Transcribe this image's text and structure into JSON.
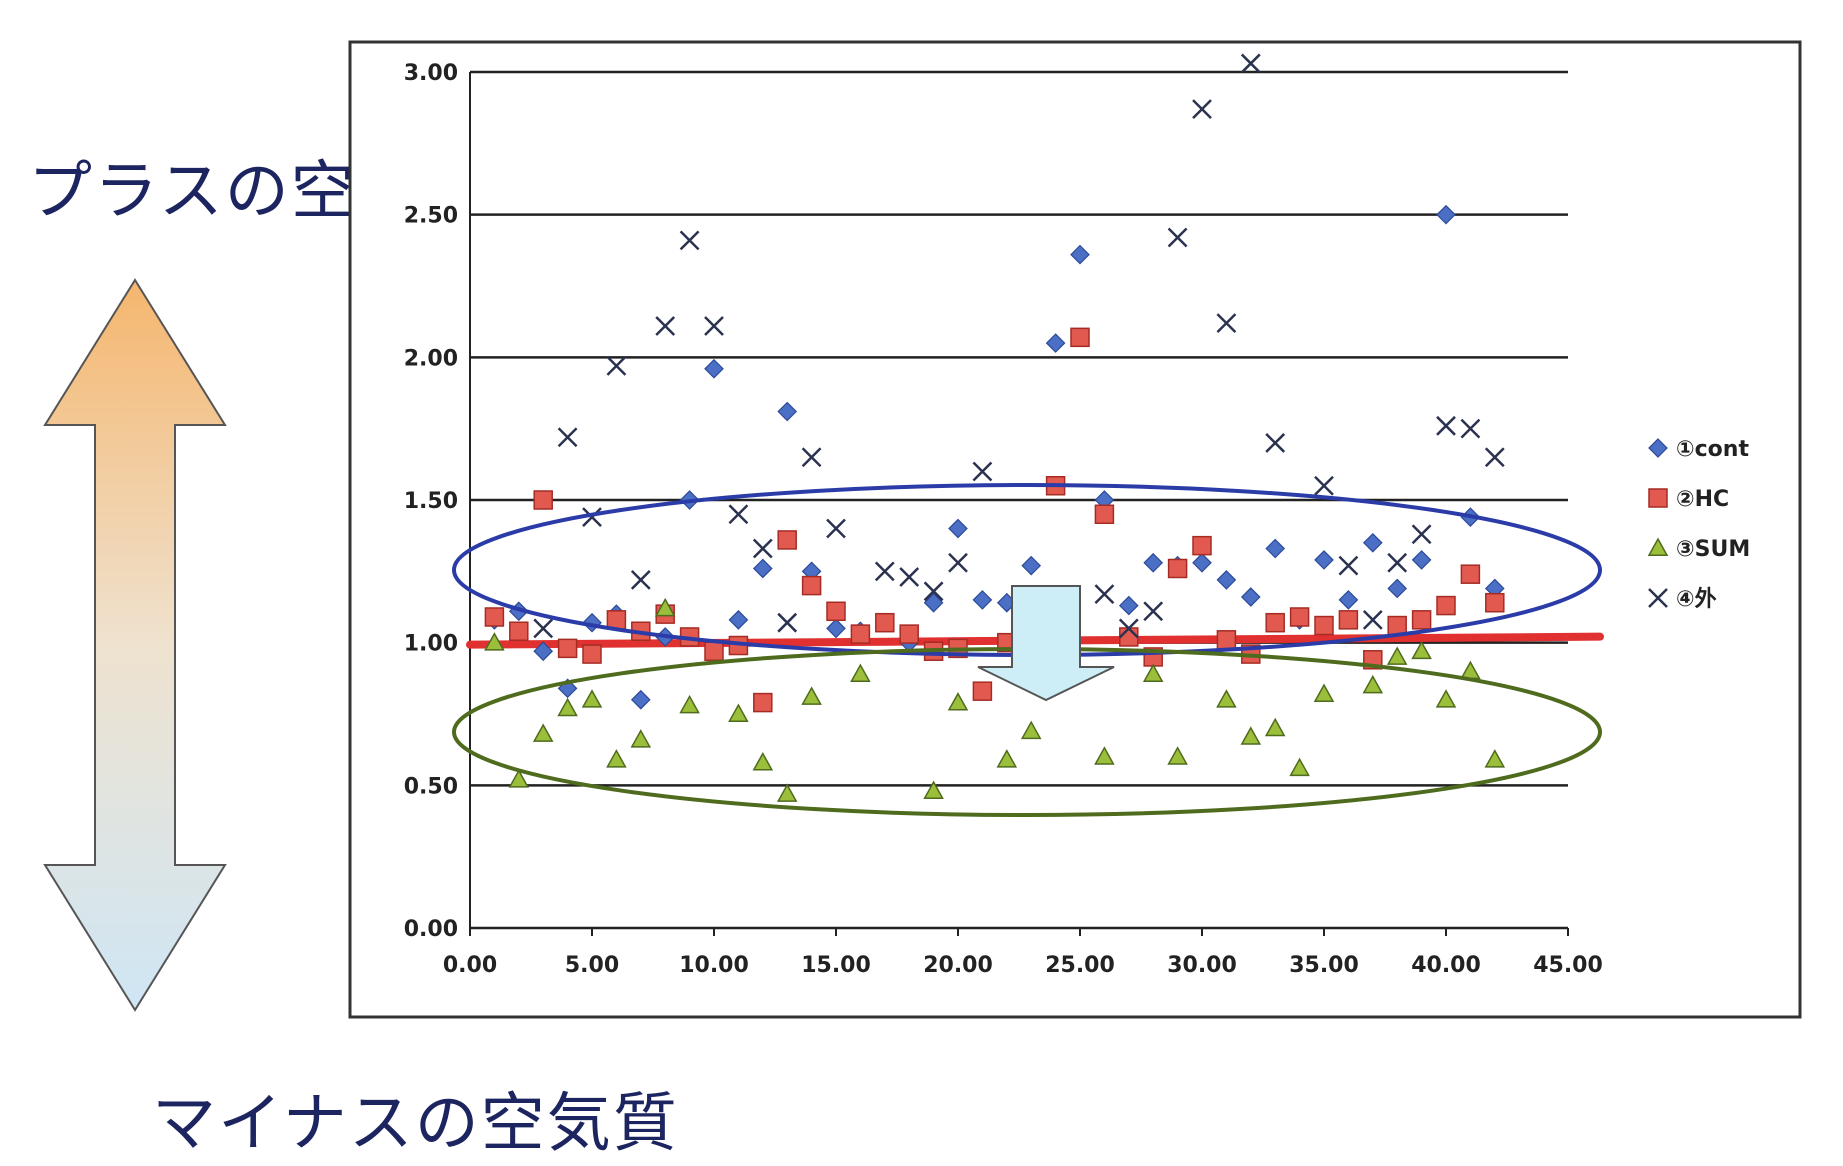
{
  "slide": {
    "label_top": "プラスの空気質",
    "label_bottom": "マイナスの空気質"
  },
  "colors": {
    "label_text": "#1c2560",
    "cont": "#4a6fc4",
    "hc": "#e25a4f",
    "sum": "#9bbf3a",
    "outside": "#2a3250",
    "ellipse_upper": "#2b3ca8",
    "ellipse_lower": "#4f6b1e",
    "ref_line": "#e03030",
    "arrow_top": "#f5b66e",
    "arrow_bottom": "#cfe6f5",
    "down_arrow_fill": "#cdeef7"
  },
  "chart_data": {
    "type": "scatter",
    "xlim": [
      0,
      45
    ],
    "ylim": [
      0,
      3
    ],
    "x_ticks": [
      "0.00",
      "5.00",
      "10.00",
      "15.00",
      "20.00",
      "25.00",
      "30.00",
      "35.00",
      "40.00",
      "45.00"
    ],
    "y_ticks": [
      "0.00",
      "0.50",
      "1.00",
      "1.50",
      "2.00",
      "2.50",
      "3.00"
    ],
    "grid": "horizontal",
    "legend_position": "right",
    "reference_line_y": 1.0,
    "series": [
      {
        "name": "①cont",
        "marker": "diamond",
        "color_key": "cont",
        "x": [
          1,
          2,
          3,
          4,
          5,
          6,
          7,
          8,
          9,
          10,
          11,
          12,
          13,
          14,
          15,
          16,
          17,
          18,
          19,
          20,
          21,
          22,
          23,
          24,
          25,
          26,
          27,
          28,
          29,
          30,
          31,
          32,
          33,
          34,
          35,
          36,
          37,
          38,
          39,
          40,
          41,
          42
        ],
        "y": [
          1.08,
          1.11,
          0.97,
          0.84,
          1.07,
          1.1,
          0.8,
          1.02,
          1.5,
          1.96,
          1.08,
          1.26,
          1.81,
          1.25,
          1.05,
          1.04,
          1.07,
          1.0,
          1.14,
          1.4,
          1.15,
          1.14,
          1.27,
          2.05,
          2.36,
          1.5,
          1.13,
          1.28,
          1.27,
          1.28,
          1.22,
          1.16,
          1.33,
          1.08,
          1.29,
          1.15,
          1.35,
          1.19,
          1.29,
          2.5,
          1.44,
          1.19
        ]
      },
      {
        "name": "②HC",
        "marker": "square",
        "color_key": "hc",
        "x": [
          1,
          2,
          3,
          4,
          5,
          6,
          7,
          8,
          9,
          10,
          11,
          12,
          13,
          14,
          15,
          16,
          17,
          18,
          19,
          20,
          21,
          22,
          23,
          24,
          25,
          26,
          27,
          28,
          29,
          30,
          31,
          32,
          33,
          34,
          35,
          36,
          37,
          38,
          39,
          40,
          41,
          42
        ],
        "y": [
          1.09,
          1.04,
          1.5,
          0.98,
          0.96,
          1.08,
          1.04,
          1.1,
          1.02,
          0.97,
          0.99,
          0.79,
          1.36,
          1.2,
          1.11,
          1.03,
          1.07,
          1.03,
          0.97,
          0.98,
          0.83,
          1.0,
          1.02,
          1.55,
          2.07,
          1.45,
          1.02,
          0.95,
          1.26,
          1.34,
          1.01,
          0.96,
          1.07,
          1.09,
          1.06,
          1.08,
          0.94,
          1.06,
          1.08,
          1.13,
          1.24,
          1.14
        ]
      },
      {
        "name": "③SUM",
        "marker": "triangle",
        "color_key": "sum",
        "x": [
          1,
          2,
          3,
          4,
          5,
          6,
          7,
          8,
          9,
          11,
          12,
          13,
          14,
          16,
          19,
          20,
          22,
          23,
          26,
          28,
          29,
          31,
          32,
          33,
          34,
          35,
          37,
          38,
          39,
          40,
          41,
          42
        ],
        "y": [
          1.0,
          0.52,
          0.68,
          0.77,
          0.8,
          0.59,
          0.66,
          1.12,
          0.78,
          0.75,
          0.58,
          0.47,
          0.81,
          0.89,
          0.48,
          0.79,
          0.59,
          0.69,
          0.6,
          0.89,
          0.6,
          0.8,
          0.67,
          0.7,
          0.56,
          0.82,
          0.85,
          0.95,
          0.97,
          0.8,
          0.9,
          0.59
        ]
      },
      {
        "name": "④外",
        "marker": "x",
        "color_key": "outside",
        "x": [
          3,
          4,
          5,
          6,
          7,
          8,
          9,
          10,
          11,
          12,
          13,
          14,
          15,
          17,
          18,
          19,
          20,
          21,
          26,
          27,
          28,
          29,
          30,
          31,
          32,
          33,
          35,
          36,
          37,
          38,
          39,
          40,
          41,
          42
        ],
        "y": [
          1.05,
          1.72,
          1.44,
          1.97,
          1.22,
          2.11,
          2.41,
          2.11,
          1.45,
          1.33,
          1.07,
          1.65,
          1.4,
          1.25,
          1.23,
          1.18,
          1.28,
          1.6,
          1.17,
          1.05,
          1.11,
          2.42,
          2.87,
          2.12,
          3.03,
          1.7,
          1.55,
          1.27,
          1.08,
          1.28,
          1.38,
          1.76,
          1.75,
          1.65
        ]
      }
    ]
  }
}
